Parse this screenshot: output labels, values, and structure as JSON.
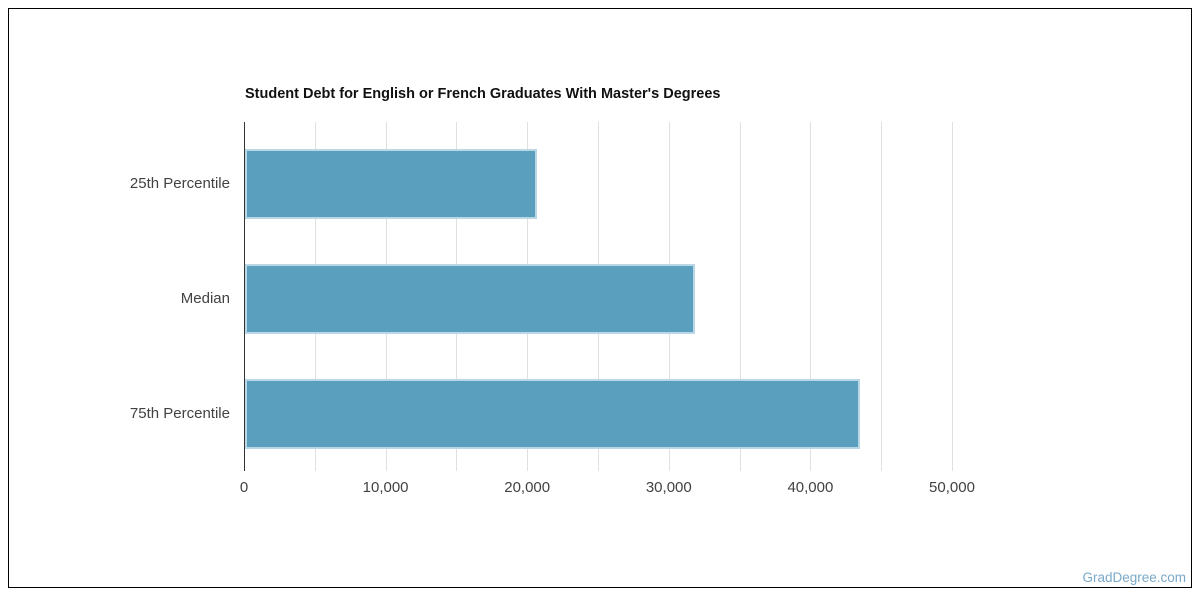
{
  "chart_data": {
    "type": "bar",
    "orientation": "horizontal",
    "title": "Student Debt for English or French Graduates With Master's Degrees",
    "categories": [
      "25th Percentile",
      "Median",
      "75th Percentile"
    ],
    "values": [
      20600,
      31800,
      43400
    ],
    "xlabel": "",
    "ylabel": "",
    "xlim": [
      0,
      50000
    ],
    "x_major_ticks": [
      0,
      10000,
      20000,
      30000,
      40000,
      50000
    ],
    "x_tick_labels": [
      "0",
      "10,000",
      "20,000",
      "30,000",
      "40,000",
      "50,000"
    ],
    "x_minor_gridline_step": 5000,
    "grid": true,
    "legend": false
  },
  "colors": {
    "bar_fill": "#5b9fbe",
    "bar_edge": "#b9d7e5",
    "grid_line": "#e0e0e0",
    "axis_line": "#333333",
    "tick_text": "#424242",
    "title_text": "#111111",
    "watermark_text": "#7aa9c9",
    "border": "#000000",
    "background": "#ffffff"
  },
  "watermark": {
    "label": "GradDegree.com"
  }
}
